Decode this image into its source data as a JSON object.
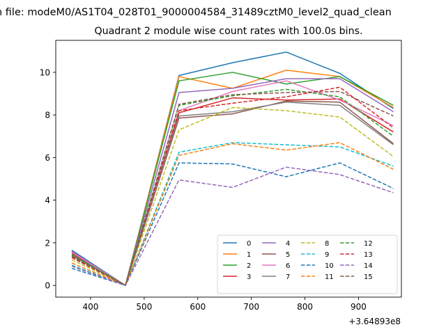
{
  "chart_data": {
    "type": "line",
    "suptitle": "n file: modeM0/AS1T04_028T01_9000004584_31489cztM0_level2_quad_clean",
    "title": "Quadrant 2 module wise count rates with 100.0s bins.",
    "xlabel": "",
    "ylabel": "",
    "x_offset_label": "+3.64893e8",
    "x": [
      365,
      465,
      565,
      665,
      765,
      865,
      965
    ],
    "xlim": [
      335,
      980
    ],
    "ylim": [
      -0.55,
      11.5
    ],
    "xticks": [
      400,
      500,
      600,
      700,
      800,
      900
    ],
    "yticks": [
      0,
      2,
      4,
      6,
      8,
      10
    ],
    "grid": false,
    "legend": {
      "placement": "lower-right",
      "ncol": 4
    },
    "series": [
      {
        "name": "0",
        "color": "#1f77b4",
        "dash": "solid",
        "values": [
          1.65,
          0.0,
          9.85,
          10.45,
          10.95,
          9.95,
          8.3
        ]
      },
      {
        "name": "1",
        "color": "#ff7f0e",
        "dash": "solid",
        "values": [
          1.55,
          0.0,
          9.8,
          9.25,
          10.1,
          9.8,
          8.35
        ]
      },
      {
        "name": "2",
        "color": "#2ca02c",
        "dash": "solid",
        "values": [
          1.6,
          0.0,
          9.6,
          10.0,
          9.45,
          9.8,
          8.45
        ]
      },
      {
        "name": "3",
        "color": "#d62728",
        "dash": "solid",
        "values": [
          1.5,
          0.0,
          8.1,
          8.8,
          8.7,
          8.75,
          7.2
        ]
      },
      {
        "name": "4",
        "color": "#9467bd",
        "dash": "solid",
        "values": [
          1.6,
          0.0,
          9.05,
          9.25,
          9.7,
          9.7,
          8.15
        ]
      },
      {
        "name": "5",
        "color": "#8c564b",
        "dash": "solid",
        "values": [
          1.4,
          0.0,
          7.85,
          8.05,
          8.65,
          8.6,
          6.65
        ]
      },
      {
        "name": "6",
        "color": "#e377c2",
        "dash": "solid",
        "values": [
          1.55,
          0.0,
          8.2,
          9.1,
          9.6,
          8.7,
          7.5
        ]
      },
      {
        "name": "7",
        "color": "#7f7f7f",
        "dash": "solid",
        "values": [
          1.45,
          0.0,
          7.95,
          8.15,
          8.6,
          8.45,
          6.6
        ]
      },
      {
        "name": "8",
        "color": "#bcbd22",
        "dash": "dashed",
        "values": [
          1.2,
          0.0,
          7.3,
          8.35,
          8.2,
          7.9,
          6.05
        ]
      },
      {
        "name": "9",
        "color": "#17becf",
        "dash": "dashed",
        "values": [
          0.95,
          0.0,
          6.25,
          6.7,
          6.6,
          6.5,
          5.6
        ]
      },
      {
        "name": "10",
        "color": "#1f77b4",
        "dash": "dashed",
        "values": [
          0.8,
          0.0,
          5.75,
          5.7,
          5.1,
          5.75,
          4.55
        ]
      },
      {
        "name": "11",
        "color": "#ff7f0e",
        "dash": "dashed",
        "values": [
          1.05,
          0.0,
          6.1,
          6.65,
          6.35,
          6.7,
          5.45
        ]
      },
      {
        "name": "12",
        "color": "#2ca02c",
        "dash": "dashed",
        "values": [
          1.45,
          0.0,
          8.45,
          8.9,
          9.2,
          8.85,
          7.0
        ]
      },
      {
        "name": "13",
        "color": "#d62728",
        "dash": "dashed",
        "values": [
          1.3,
          0.0,
          8.2,
          8.55,
          8.85,
          9.3,
          7.4
        ]
      },
      {
        "name": "14",
        "color": "#9467bd",
        "dash": "dashed",
        "values": [
          0.9,
          0.0,
          4.95,
          4.6,
          5.55,
          5.2,
          4.35
        ]
      },
      {
        "name": "15",
        "color": "#8c564b",
        "dash": "dashed",
        "values": [
          1.35,
          0.0,
          8.5,
          8.95,
          9.05,
          9.1,
          7.95
        ]
      }
    ]
  }
}
